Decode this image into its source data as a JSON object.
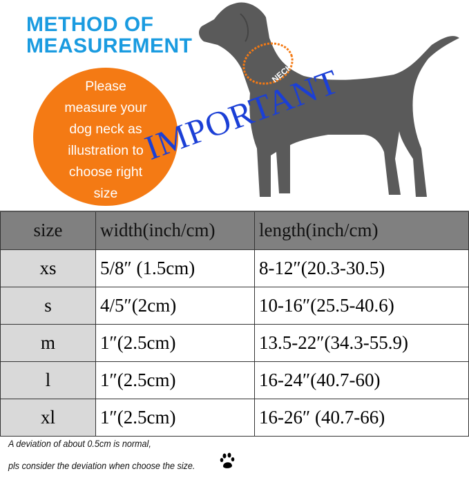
{
  "title": [
    "METHOD OF",
    "MEASUREMENT"
  ],
  "instruction": [
    "Please",
    "measure your",
    "dog neck as",
    "illustration to",
    "choose right",
    "size"
  ],
  "neck_label": "NECK",
  "stamp": "IMPORTANT",
  "colors": {
    "title": "#1a9be0",
    "circle": "#f47a14",
    "stamp": "#1b3fd6",
    "dog": "#5a5a5a",
    "header": "#808080"
  },
  "table": {
    "headers": [
      "size",
      "width(inch/cm)",
      "length(inch/cm)"
    ],
    "rows": [
      [
        "xs",
        "5/8″ (1.5cm)",
        "8-12″(20.3-30.5)"
      ],
      [
        "s",
        "4/5″(2cm)",
        "10-16″(25.5-40.6)"
      ],
      [
        "m",
        "1″(2.5cm)",
        "13.5-22″(34.3-55.9)"
      ],
      [
        "l",
        "1″(2.5cm)",
        "16-24″(40.7-60)"
      ],
      [
        "xl",
        "1″(2.5cm)",
        "16-26″ (40.7-66)"
      ]
    ]
  },
  "notes": [
    "A deviation of about 0.5cm is normal,",
    "pls consider the deviation when choose the size."
  ],
  "icons": {
    "paw": "paw-icon"
  }
}
